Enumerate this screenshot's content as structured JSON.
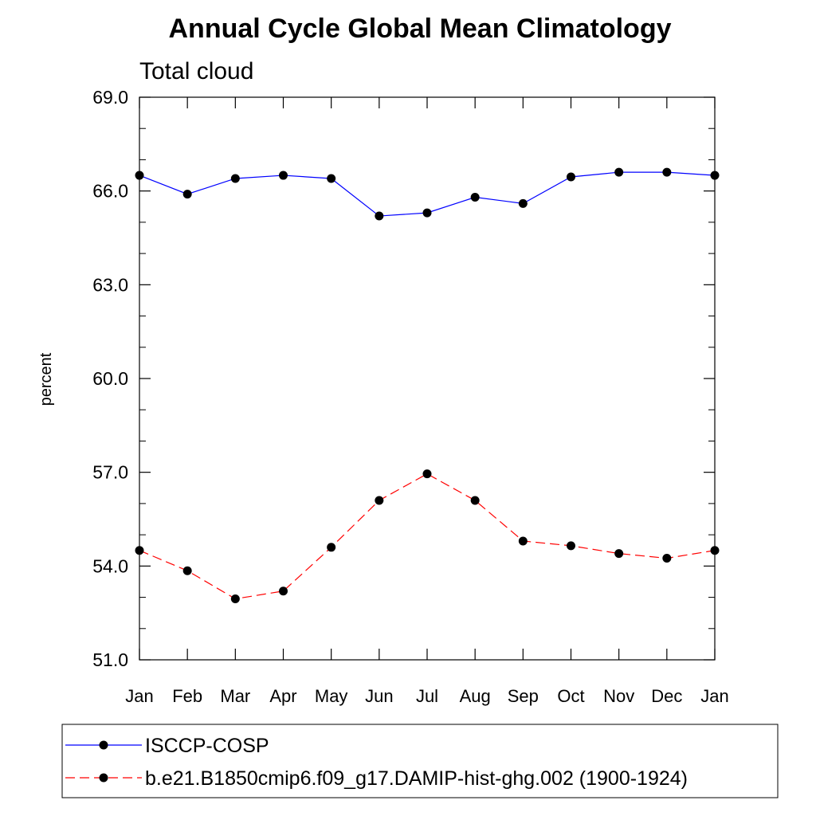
{
  "chart_data": {
    "type": "line",
    "title": "Annual Cycle Global Mean Climatology",
    "subtitle": "Total cloud",
    "xlabel": "",
    "ylabel": "percent",
    "categories": [
      "Jan",
      "Feb",
      "Mar",
      "Apr",
      "May",
      "Jun",
      "Jul",
      "Aug",
      "Sep",
      "Oct",
      "Nov",
      "Dec",
      "Jan"
    ],
    "ylim": [
      51.0,
      69.0
    ],
    "yticks": [
      "51.0",
      "54.0",
      "57.0",
      "60.0",
      "63.0",
      "66.0",
      "69.0"
    ],
    "grid": false,
    "legend_position": "bottom",
    "series": [
      {
        "name": "ISCCP-COSP",
        "color": "#0000ff",
        "line_style": "solid",
        "marker": "filled-circle",
        "values": [
          66.5,
          65.9,
          66.4,
          66.5,
          66.4,
          65.2,
          65.3,
          65.8,
          65.6,
          66.45,
          66.6,
          66.6,
          66.5
        ]
      },
      {
        "name": "b.e21.B1850cmip6.f09_g17.DAMIP-hist-ghg.002 (1900-1924)",
        "color": "#ff0000",
        "line_style": "dashed",
        "marker": "filled-circle",
        "values": [
          54.5,
          53.85,
          52.95,
          53.2,
          54.6,
          56.1,
          56.95,
          56.1,
          54.8,
          54.65,
          54.4,
          54.25,
          54.5
        ]
      }
    ]
  }
}
